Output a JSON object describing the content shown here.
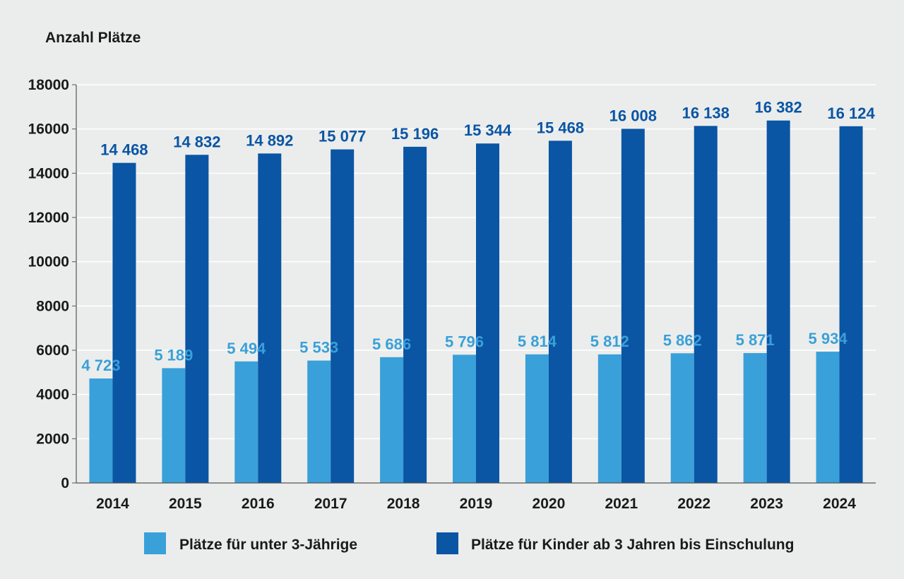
{
  "chart_data": {
    "type": "bar",
    "ylabel": "Anzahl Plätze",
    "ylim": [
      0,
      18000
    ],
    "yticks": [
      "0",
      "2000",
      "4000",
      "6000",
      "8000",
      "10000",
      "12000",
      "14000",
      "16000",
      "18000"
    ],
    "grid": true,
    "legend_position": "bottom",
    "categories": [
      "2014",
      "2015",
      "2016",
      "2017",
      "2018",
      "2019",
      "2020",
      "2021",
      "2022",
      "2023",
      "2024"
    ],
    "series": [
      {
        "name": "Plätze für unter 3-Jährige",
        "color": "#3aa0d9",
        "values": [
          4723,
          5189,
          5494,
          5533,
          5686,
          5796,
          5814,
          5812,
          5862,
          5871,
          5934
        ],
        "labels": [
          "4 723",
          "5 189",
          "5 494",
          "5 533",
          "5 686",
          "5 796",
          "5 814",
          "5 812",
          "5 862",
          "5 871",
          "5 934"
        ]
      },
      {
        "name": "Plätze für Kinder ab 3 Jahren bis Einschulung",
        "color": "#0a55a4",
        "values": [
          14468,
          14832,
          14892,
          15077,
          15196,
          15344,
          15468,
          16008,
          16138,
          16382,
          16124
        ],
        "labels": [
          "14 468",
          "14 832",
          "14 892",
          "15 077",
          "15 196",
          "15 344",
          "15 468",
          "16 008",
          "16 138",
          "16 382",
          "16 124"
        ]
      }
    ]
  }
}
